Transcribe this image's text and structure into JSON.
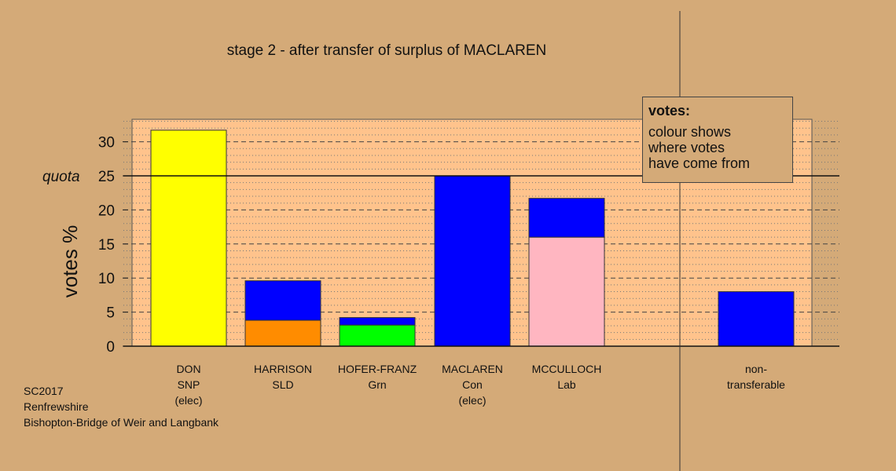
{
  "chart_data": {
    "type": "bar",
    "stacked": true,
    "title": "stage 2 - after transfer of surplus of MACLAREN",
    "ylabel": "votes %",
    "ylim": [
      0,
      33
    ],
    "yticks": [
      0,
      5,
      10,
      15,
      20,
      25,
      30
    ],
    "quota": {
      "label": "quota",
      "value": 25
    },
    "grid": "dashed major, dotted minor",
    "candidates": [
      {
        "lines": [
          "DON",
          "SNP",
          "(elec)"
        ],
        "segments": [
          {
            "value": 31.7,
            "color": "#ffff00"
          }
        ]
      },
      {
        "lines": [
          "HARRISON",
          "SLD"
        ],
        "segments": [
          {
            "value": 3.8,
            "color": "#ff8c00"
          },
          {
            "value": 5.8,
            "color": "#0000ff"
          }
        ]
      },
      {
        "lines": [
          "HOFER-FRANZ",
          "Grn"
        ],
        "segments": [
          {
            "value": 3.1,
            "color": "#00ff00"
          },
          {
            "value": 1.1,
            "color": "#0000ff"
          }
        ]
      },
      {
        "lines": [
          "MACLAREN",
          "Con",
          "(elec)"
        ],
        "segments": [
          {
            "value": 25.0,
            "color": "#0000ff"
          }
        ]
      },
      {
        "lines": [
          "MCCULLOCH",
          "Lab"
        ],
        "segments": [
          {
            "value": 16.0,
            "color": "#ffb6c1"
          },
          {
            "value": 5.7,
            "color": "#0000ff"
          }
        ]
      }
    ],
    "nontransferable": {
      "lines": [
        "non-",
        "transferable"
      ],
      "segments": [
        {
          "value": 8.0,
          "color": "#0000ff"
        }
      ]
    }
  },
  "legend": {
    "title": "votes:",
    "lines": [
      "colour shows",
      "where votes",
      "have come from"
    ]
  },
  "footer": [
    "SC2017",
    "Renfrewshire",
    "Bishopton-Bridge of Weir and Langbank"
  ]
}
